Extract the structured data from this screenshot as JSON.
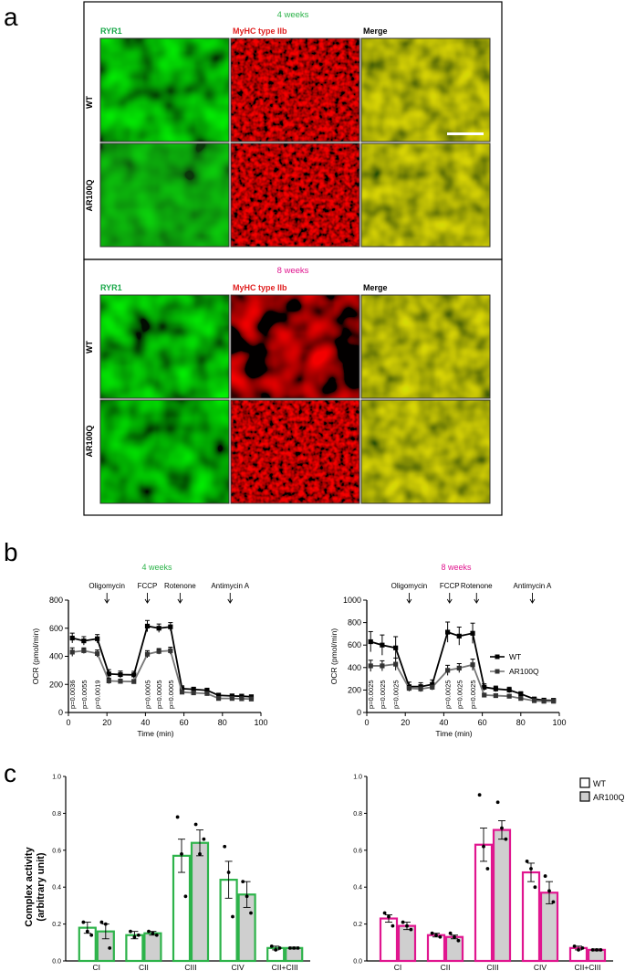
{
  "panel_labels": {
    "a": "a",
    "b": "b",
    "c": "c"
  },
  "colors": {
    "green": "#2db34a",
    "magenta": "#e0168f",
    "red": "#e02020",
    "ryr1": "#1aa84a",
    "wt_fill": "#ffffff",
    "ar_fill": "#cfcfcf"
  },
  "section_a": {
    "timepoints": [
      {
        "title": "4 weeks",
        "col_headers": [
          "RYR1",
          "MyHC type IIb",
          "Merge"
        ],
        "row_labels": [
          "WT",
          "AR100Q"
        ]
      },
      {
        "title": "8 weeks",
        "col_headers": [
          "RYR1",
          "MyHC type IIb",
          "Merge"
        ],
        "row_labels": [
          "WT",
          "AR100Q"
        ]
      }
    ]
  },
  "section_b": {
    "ylabel": "OCR (pmol/min)",
    "xlabel": "Time (min)",
    "injections": [
      "Oligomycin",
      "FCCP",
      "Rotenone",
      "Antimycin A"
    ],
    "legend": [
      "WT",
      "AR100Q"
    ]
  },
  "section_c": {
    "ylabel_line1": "Complex activity",
    "ylabel_line2": "(arbitrary unit)",
    "legend": [
      "WT",
      "AR100Q"
    ]
  },
  "chart_data": [
    {
      "type": "line",
      "title": "4 weeks",
      "xlabel": "Time (min)",
      "ylabel": "OCR (pmol/min)",
      "xlim": [
        0,
        100
      ],
      "ylim": [
        0,
        800
      ],
      "xticks": [
        0,
        20,
        40,
        60,
        80,
        100
      ],
      "yticks": [
        0,
        200,
        400,
        600,
        800
      ],
      "injections": [
        {
          "label": "Oligomycin",
          "x": 20
        },
        {
          "label": "FCCP",
          "x": 41
        },
        {
          "label": "Rotenone",
          "x": 58
        },
        {
          "label": "Antimycin A",
          "x": 84
        }
      ],
      "x": [
        2,
        8,
        15,
        21,
        27,
        34,
        41,
        47,
        53,
        59,
        65,
        72,
        78,
        85,
        90,
        95
      ],
      "series": [
        {
          "name": "WT",
          "values": [
            530,
            510,
            525,
            275,
            270,
            268,
            615,
            600,
            610,
            170,
            165,
            158,
            122,
            118,
            116,
            112
          ],
          "errors": [
            35,
            30,
            30,
            30,
            25,
            25,
            40,
            30,
            30,
            20,
            15,
            15,
            15,
            12,
            12,
            10
          ]
        },
        {
          "name": "AR100Q",
          "values": [
            430,
            440,
            420,
            225,
            222,
            220,
            415,
            435,
            440,
            145,
            140,
            135,
            100,
            100,
            98,
            96
          ],
          "errors": [
            30,
            20,
            25,
            20,
            15,
            15,
            25,
            20,
            25,
            12,
            10,
            10,
            10,
            10,
            8,
            8
          ]
        }
      ],
      "pvalues": [
        {
          "x": 2,
          "text": "p=0.0036"
        },
        {
          "x": 8,
          "text": "p=0.0055"
        },
        {
          "x": 15,
          "text": "p=0.0019"
        },
        {
          "x": 41,
          "text": "p=0.0005"
        },
        {
          "x": 47,
          "text": "p=0.0005"
        },
        {
          "x": 53,
          "text": "p=0.0005"
        }
      ]
    },
    {
      "type": "line",
      "title": "8 weeks",
      "xlabel": "Time (min)",
      "ylabel": "OCR (pmol/min)",
      "xlim": [
        0,
        100
      ],
      "ylim": [
        0,
        1000
      ],
      "xticks": [
        0,
        20,
        40,
        60,
        80,
        100
      ],
      "yticks": [
        0,
        200,
        400,
        600,
        800,
        1000
      ],
      "injections": [
        {
          "label": "Oligomycin",
          "x": 22
        },
        {
          "label": "FCCP",
          "x": 43
        },
        {
          "label": "Rotenone",
          "x": 57
        },
        {
          "label": "Antimycin A",
          "x": 86
        }
      ],
      "x": [
        2,
        8,
        15,
        22,
        28,
        34,
        42,
        48,
        55,
        61,
        67,
        74,
        80,
        87,
        92,
        97
      ],
      "series": [
        {
          "name": "WT",
          "values": [
            630,
            600,
            575,
            230,
            230,
            250,
            715,
            680,
            705,
            225,
            210,
            200,
            165,
            120,
            110,
            108
          ],
          "errors": [
            90,
            90,
            100,
            40,
            35,
            40,
            90,
            80,
            90,
            30,
            25,
            25,
            20,
            15,
            12,
            12
          ]
        },
        {
          "name": "AR100Q",
          "values": [
            415,
            415,
            430,
            215,
            210,
            225,
            375,
            395,
            425,
            155,
            150,
            145,
            125,
            105,
            100,
            100
          ],
          "errors": [
            50,
            45,
            55,
            25,
            25,
            25,
            45,
            40,
            50,
            15,
            15,
            15,
            12,
            10,
            10,
            10
          ]
        }
      ],
      "pvalues": [
        {
          "x": 2,
          "text": "p=0.0025"
        },
        {
          "x": 8,
          "text": "p=0.0025"
        },
        {
          "x": 15,
          "text": "p=0.0025"
        },
        {
          "x": 42,
          "text": "p=0.0025"
        },
        {
          "x": 48,
          "text": "p=0.0025"
        },
        {
          "x": 55,
          "text": "p=0.0025"
        }
      ]
    },
    {
      "type": "bar",
      "title": "",
      "ylabel": "Complex activity (arbitrary unit)",
      "ylim": [
        0,
        1.0
      ],
      "yticks": [
        0.0,
        0.2,
        0.4,
        0.6,
        0.8,
        1.0
      ],
      "categories": [
        "CI",
        "CII",
        "CIII",
        "CIV",
        "CII+CIII"
      ],
      "series": [
        {
          "name": "WT",
          "values": [
            0.18,
            0.14,
            0.57,
            0.44,
            0.07
          ],
          "errors": [
            0.03,
            0.02,
            0.09,
            0.1,
            0.01
          ],
          "points": [
            [
              0.21,
              0.16,
              0.14
            ],
            [
              0.16,
              0.13,
              0.14
            ],
            [
              0.78,
              0.58,
              0.35
            ],
            [
              0.62,
              0.48,
              0.24
            ],
            [
              0.08,
              0.06,
              0.07
            ]
          ]
        },
        {
          "name": "AR100Q",
          "values": [
            0.16,
            0.15,
            0.64,
            0.36,
            0.07
          ],
          "errors": [
            0.04,
            0.01,
            0.07,
            0.07,
            0.005
          ],
          "points": [
            [
              0.21,
              0.2,
              0.07
            ],
            [
              0.16,
              0.15,
              0.14
            ],
            [
              0.74,
              0.58,
              0.66
            ],
            [
              0.43,
              0.35,
              0.26
            ],
            [
              0.07,
              0.07,
              0.07
            ]
          ]
        }
      ]
    },
    {
      "type": "bar",
      "title": "",
      "ylim": [
        0,
        1.0
      ],
      "yticks": [
        0.0,
        0.2,
        0.4,
        0.6,
        0.8,
        1.0
      ],
      "categories": [
        "CI",
        "CII",
        "CIII",
        "CIV",
        "CII+CIII"
      ],
      "series": [
        {
          "name": "WT",
          "values": [
            0.23,
            0.14,
            0.63,
            0.48,
            0.07
          ],
          "errors": [
            0.02,
            0.01,
            0.09,
            0.05,
            0.01
          ],
          "points": [
            [
              0.26,
              0.24,
              0.19
            ],
            [
              0.15,
              0.14,
              0.13
            ],
            [
              0.9,
              0.62,
              0.5
            ],
            [
              0.54,
              0.5,
              0.4
            ],
            [
              0.08,
              0.06,
              0.07
            ]
          ]
        },
        {
          "name": "AR100Q",
          "values": [
            0.19,
            0.13,
            0.71,
            0.37,
            0.06
          ],
          "errors": [
            0.02,
            0.01,
            0.05,
            0.06,
            0.005
          ],
          "points": [
            [
              0.21,
              0.19,
              0.17
            ],
            [
              0.15,
              0.13,
              0.11
            ],
            [
              0.86,
              0.72,
              0.66
            ],
            [
              0.46,
              0.38,
              0.32
            ],
            [
              0.06,
              0.06,
              0.06
            ]
          ]
        }
      ]
    }
  ]
}
